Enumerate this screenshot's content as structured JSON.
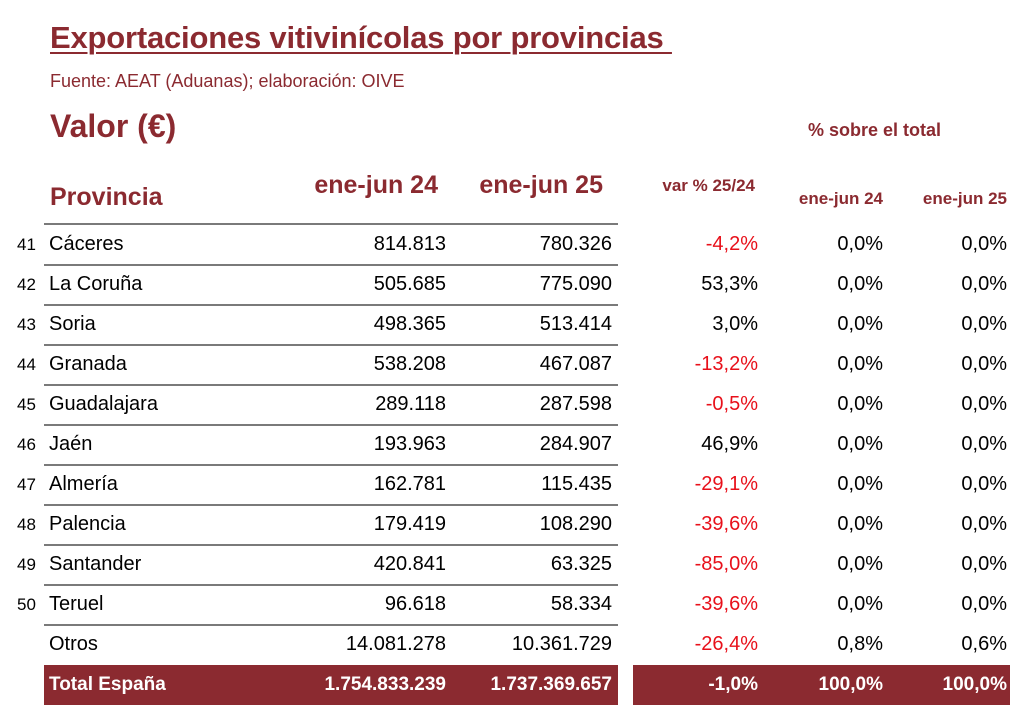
{
  "header": {
    "title": "Exportaciones vitivinícolas por provincias ",
    "source": "Fuente: AEAT (Aduanas); elaboración: OIVE",
    "measure": "Valor (€)",
    "share_group_label": "% sobre el total"
  },
  "table": {
    "columns": {
      "province": "Provincia",
      "period_24": "ene-jun 24",
      "period_25": "ene-jun 25",
      "variation": "var % 25/24",
      "share_24": "ene-jun 24",
      "share_25": "ene-jun 25"
    },
    "rows": [
      {
        "rank": "41",
        "province": "Cáceres",
        "v24": "814.813",
        "v25": "780.326",
        "var": "-4,2%",
        "neg": true,
        "p24": "0,0%",
        "p25": "0,0%"
      },
      {
        "rank": "42",
        "province": "La Coruña",
        "v24": "505.685",
        "v25": "775.090",
        "var": "53,3%",
        "neg": false,
        "p24": "0,0%",
        "p25": "0,0%"
      },
      {
        "rank": "43",
        "province": "Soria",
        "v24": "498.365",
        "v25": "513.414",
        "var": "3,0%",
        "neg": false,
        "p24": "0,0%",
        "p25": "0,0%"
      },
      {
        "rank": "44",
        "province": "Granada",
        "v24": "538.208",
        "v25": "467.087",
        "var": "-13,2%",
        "neg": true,
        "p24": "0,0%",
        "p25": "0,0%"
      },
      {
        "rank": "45",
        "province": "Guadalajara",
        "v24": "289.118",
        "v25": "287.598",
        "var": "-0,5%",
        "neg": true,
        "p24": "0,0%",
        "p25": "0,0%"
      },
      {
        "rank": "46",
        "province": "Jaén",
        "v24": "193.963",
        "v25": "284.907",
        "var": "46,9%",
        "neg": false,
        "p24": "0,0%",
        "p25": "0,0%"
      },
      {
        "rank": "47",
        "province": "Almería",
        "v24": "162.781",
        "v25": "115.435",
        "var": "-29,1%",
        "neg": true,
        "p24": "0,0%",
        "p25": "0,0%"
      },
      {
        "rank": "48",
        "province": "Palencia",
        "v24": "179.419",
        "v25": "108.290",
        "var": "-39,6%",
        "neg": true,
        "p24": "0,0%",
        "p25": "0,0%"
      },
      {
        "rank": "49",
        "province": "Santander",
        "v24": "420.841",
        "v25": "63.325",
        "var": "-85,0%",
        "neg": true,
        "p24": "0,0%",
        "p25": "0,0%"
      },
      {
        "rank": "50",
        "province": "Teruel",
        "v24": "96.618",
        "v25": "58.334",
        "var": "-39,6%",
        "neg": true,
        "p24": "0,0%",
        "p25": "0,0%"
      },
      {
        "rank": "",
        "province": "Otros",
        "v24": "14.081.278",
        "v25": "10.361.729",
        "var": "-26,4%",
        "neg": true,
        "p24": "0,8%",
        "p25": "0,6%"
      }
    ],
    "total": {
      "label": "Total España",
      "v24": "1.754.833.239",
      "v25": "1.737.369.657",
      "var": "-1,0%",
      "p24": "100,0%",
      "p25": "100,0%"
    }
  },
  "colors": {
    "accent": "#8b2a30",
    "negative": "#e8101a"
  }
}
